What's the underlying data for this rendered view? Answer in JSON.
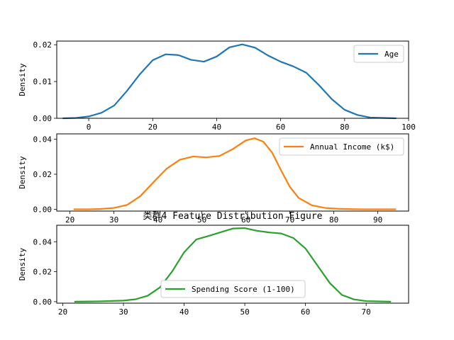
{
  "title": "类群4 Feature Distribution Figure",
  "chart_data": [
    {
      "type": "line",
      "ylabel": "Density",
      "xlim": [
        -10,
        100
      ],
      "ylim": [
        0,
        0.021
      ],
      "xticks": [
        0,
        20,
        40,
        60,
        80,
        100
      ],
      "yticks": [
        0.0,
        0.01,
        0.02
      ],
      "ytick_labels": [
        "0.00",
        "0.01",
        "0.02"
      ],
      "legend_position": "top-right",
      "series": [
        {
          "name": "Age",
          "color": "#1f77b4",
          "x": [
            -8,
            -4,
            0,
            4,
            8,
            12,
            16,
            20,
            24,
            28,
            32,
            36,
            40,
            44,
            48,
            52,
            56,
            60,
            64,
            68,
            72,
            76,
            80,
            84,
            88,
            92,
            96
          ],
          "y": [
            0.0,
            0.0001,
            0.0005,
            0.0015,
            0.0035,
            0.0075,
            0.012,
            0.0158,
            0.0174,
            0.0172,
            0.0159,
            0.0154,
            0.0168,
            0.0193,
            0.0201,
            0.0192,
            0.0171,
            0.0154,
            0.0141,
            0.0124,
            0.009,
            0.0052,
            0.0023,
            0.0009,
            0.0002,
            0.0001,
            0.0
          ]
        }
      ]
    },
    {
      "type": "line",
      "ylabel": "Density",
      "xlim": [
        17,
        97
      ],
      "ylim": [
        -0.001,
        0.043
      ],
      "xticks": [
        20,
        30,
        40,
        50,
        60,
        70,
        80,
        90
      ],
      "yticks": [
        0.0,
        0.02,
        0.04
      ],
      "ytick_labels": [
        "0.00",
        "0.02",
        "0.04"
      ],
      "legend_position": "top-right",
      "series": [
        {
          "name": "Annual Income (k$)",
          "color": "#ff7f0e",
          "x": [
            21,
            24,
            27,
            30,
            33,
            36,
            39,
            42,
            45,
            48,
            51,
            54,
            57,
            60,
            62,
            64,
            66,
            68,
            70,
            72,
            75,
            78,
            81,
            84,
            87,
            90,
            94
          ],
          "y": [
            0.0,
            0.0,
            0.0002,
            0.0008,
            0.0025,
            0.0075,
            0.0155,
            0.0232,
            0.0283,
            0.0301,
            0.0296,
            0.0304,
            0.0343,
            0.0393,
            0.0405,
            0.0385,
            0.0322,
            0.0222,
            0.0128,
            0.0065,
            0.0023,
            0.0008,
            0.0003,
            0.0001,
            0.0,
            0.0,
            0.0
          ]
        }
      ]
    },
    {
      "type": "line",
      "ylabel": "Density",
      "xlim": [
        19,
        77
      ],
      "ylim": [
        -0.001,
        0.051
      ],
      "xticks": [
        20,
        30,
        40,
        50,
        60,
        70
      ],
      "yticks": [
        0.0,
        0.02,
        0.04
      ],
      "ytick_labels": [
        "0.00",
        "0.02",
        "0.04"
      ],
      "legend_position": "bottom-center",
      "series": [
        {
          "name": "Spending Score (1-100)",
          "color": "#2ca02c",
          "x": [
            22,
            26,
            30,
            32,
            34,
            36,
            38,
            40,
            42,
            44,
            46,
            48,
            50,
            52,
            54,
            56,
            58,
            60,
            62,
            64,
            66,
            68,
            70,
            74
          ],
          "y": [
            0.0,
            0.0002,
            0.0007,
            0.0016,
            0.004,
            0.0095,
            0.02,
            0.033,
            0.0415,
            0.0438,
            0.0463,
            0.0488,
            0.0491,
            0.0473,
            0.0462,
            0.0455,
            0.0425,
            0.0355,
            0.024,
            0.0125,
            0.0045,
            0.0015,
            0.0004,
            0.0
          ]
        }
      ]
    }
  ]
}
